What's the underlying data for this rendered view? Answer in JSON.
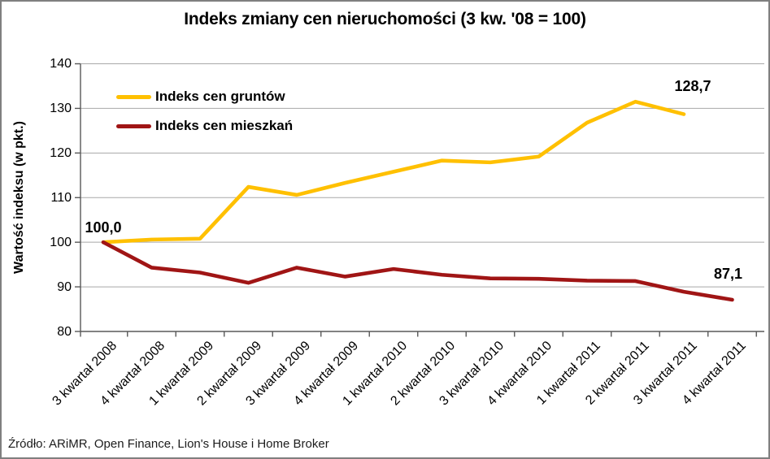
{
  "title": "Indeks zmiany cen nieruchomości (3 kw. '08 = 100)",
  "source": "Źródło: ARiMR, Open Finance, Lion's House i Home Broker",
  "legend": {
    "items": [
      {
        "label": "Indeks cen gruntów",
        "color": "#FFC000"
      },
      {
        "label": "Indeks cen mieszkań",
        "color": "#A01515"
      }
    ]
  },
  "chart_data": {
    "type": "line",
    "title": "Indeks zmiany cen nieruchomości (3 kw. '08 = 100)",
    "xlabel": "",
    "ylabel": "Wartość indeksu (w pkt.)",
    "ylim": [
      80,
      140
    ],
    "y_ticks": [
      140,
      130,
      120,
      110,
      100,
      90,
      80
    ],
    "grid": true,
    "legend_position": "top-left-inside",
    "categories": [
      "3 kwartał 2008",
      "4 kwartał 2008",
      "1 kwartał 2009",
      "2 kwartał 2009",
      "3 kwartał 2009",
      "4 kwartał 2009",
      "1 kwartał 2010",
      "2 kwartał 2010",
      "3 kwartał 2010",
      "4 kwartał 2010",
      "1 kwartał 2011",
      "2 kwartał 2011",
      "3 kwartał 2011",
      "4 kwartał 2011"
    ],
    "series": [
      {
        "name": "Indeks cen gruntów",
        "color": "#FFC000",
        "values": [
          100.0,
          100.6,
          100.8,
          112.4,
          110.6,
          113.3,
          115.8,
          118.3,
          117.9,
          119.2,
          126.8,
          131.5,
          128.7
        ]
      },
      {
        "name": "Indeks cen mieszkań",
        "color": "#A01515",
        "values": [
          100.0,
          94.3,
          93.2,
          90.9,
          94.3,
          92.3,
          94.0,
          92.7,
          91.9,
          91.8,
          91.4,
          91.3,
          88.9,
          87.1
        ]
      }
    ],
    "annotations": [
      {
        "text": "100,0",
        "series_index": 1,
        "point_index": 0
      },
      {
        "text": "128,7",
        "series_index": 0,
        "point_index": 12
      },
      {
        "text": "87,1",
        "series_index": 1,
        "point_index": 13
      }
    ]
  }
}
